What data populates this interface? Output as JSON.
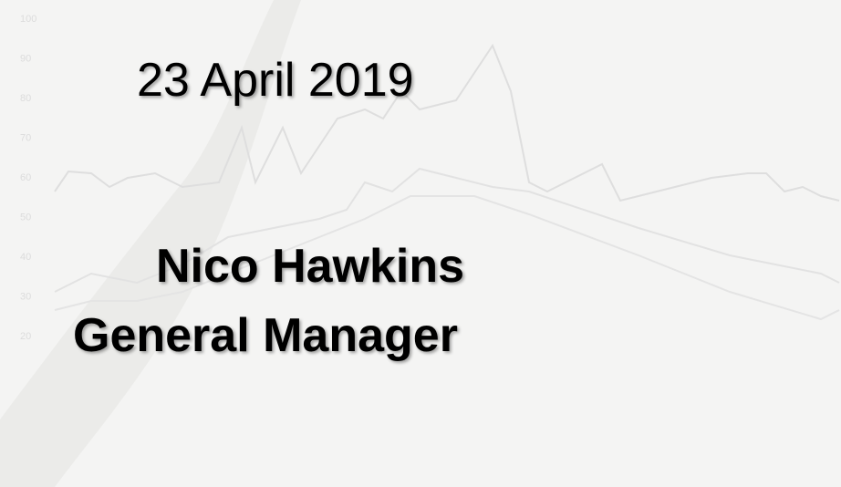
{
  "slide": {
    "date": "23 April 2019",
    "name": "Nico Hawkins",
    "role": "General Manager",
    "background_axis_labels": [
      "100",
      "90",
      "80",
      "70",
      "60",
      "50",
      "40",
      "30",
      "20"
    ]
  }
}
